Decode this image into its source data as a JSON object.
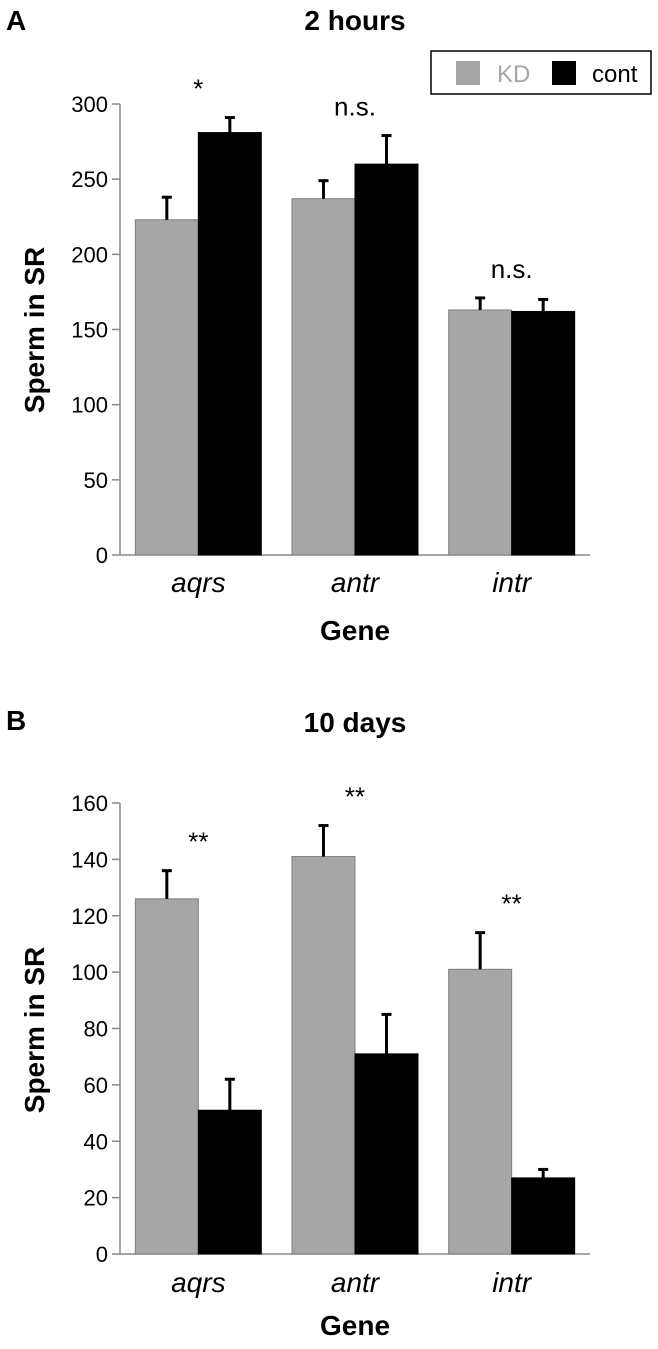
{
  "legend": {
    "entries": [
      {
        "name": "KD",
        "color": "#a6a6a6",
        "text_color": "#a6a6a6"
      },
      {
        "name": "cont",
        "color": "#000000",
        "text_color": "#000000"
      }
    ],
    "placement": "top-right"
  },
  "chart_data": [
    {
      "type": "bar",
      "panel": "A",
      "title": "2 hours",
      "xlabel": "Gene",
      "ylabel": "Sperm in SR",
      "ylim": [
        0,
        300
      ],
      "yticks": [
        0,
        50,
        100,
        150,
        200,
        250,
        300
      ],
      "categories": [
        "aqrs",
        "antr",
        "intr"
      ],
      "series": [
        {
          "name": "KD",
          "color": "#a6a6a6",
          "values": [
            223,
            237,
            163
          ],
          "errors": [
            15,
            12,
            8
          ]
        },
        {
          "name": "cont",
          "color": "#000000",
          "values": [
            281,
            260,
            162
          ],
          "errors": [
            10,
            19,
            8
          ]
        }
      ],
      "annotations": [
        "*",
        "n.s.",
        "n.s."
      ],
      "grid": false
    },
    {
      "type": "bar",
      "panel": "B",
      "title": "10 days",
      "xlabel": "Gene",
      "ylabel": "Sperm in SR",
      "ylim": [
        0,
        160
      ],
      "yticks": [
        0,
        20,
        40,
        60,
        80,
        100,
        120,
        140,
        160
      ],
      "categories": [
        "aqrs",
        "antr",
        "intr"
      ],
      "series": [
        {
          "name": "KD",
          "color": "#a6a6a6",
          "values": [
            126,
            141,
            101
          ],
          "errors": [
            10,
            11,
            13
          ]
        },
        {
          "name": "cont",
          "color": "#000000",
          "values": [
            51,
            71,
            27
          ],
          "errors": [
            11,
            14,
            3
          ]
        }
      ],
      "annotations": [
        "**",
        "**",
        "**"
      ],
      "grid": false
    }
  ]
}
